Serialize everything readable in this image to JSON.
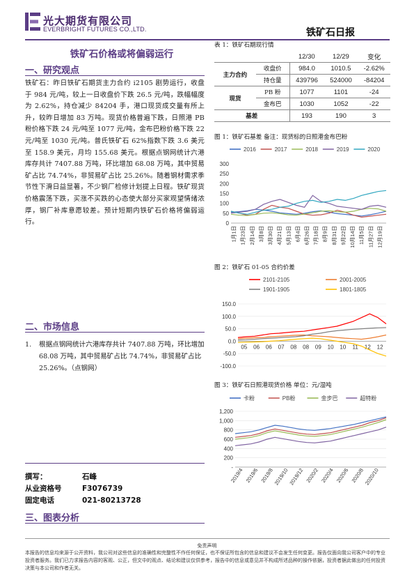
{
  "header": {
    "company_cn": "光大期货有限公司",
    "company_en": "EVERBRIGHT FUTURES CO.,LTD.",
    "report_title": "铁矿石日报"
  },
  "title": "铁矿石价格或将偏弱运行",
  "section1": {
    "heading": "一、研究观点",
    "paragraph": "铁矿石：昨日铁矿石期货主力合约 i2105 剧势运行，收盘于 984 元/吨，较上一日收盘价下跌 26.5 元/吨，跌幅幅度为 2.62%，持仓减少 84204 手，港口现货成交量有所上升，较昨日增加 83 万吨。现货价格普遍下跌，日照港 PB 粉价格下跌 24 元/吨至 1077 元/吨，金布巴粉价格下跌 22 元/吨至 1030 元/吨。普氏铁矿石 62%指数下跌 3.6 美元至 158.9 美元，月均 155.68 美元。根据点钢网统计六港库存共计 7407.88 万吨，环比增加 68.08 万吨，其中贸易矿占比 74.74%，非贸易矿占比 25.26%。随着钢材需求季节性下滑日益显著，不少钢厂检修计划提上日程。铁矿现货价格震荡下跌，买涨不买跌的心态使大部分买家观望情绪浓厚，钢厂补库意愿较差。预计短期内铁矿石价格将偏弱运行。"
  },
  "section2": {
    "heading": "二、市场信息",
    "item_no": "1.",
    "item": "根据点钢网统计六港库存共计 7407.88 万吨，环比增加 68.08 万吨，其中贸易矿占比 74.74%，非贸易矿占比 25.26%。（点钢网）"
  },
  "signature": {
    "author_label": "撰写：",
    "author": "石峰",
    "license_label": "从业资格号",
    "license": "F3076739",
    "phone_label": "固定电话",
    "phone": "021-80213728"
  },
  "section3": {
    "heading": "三、图表分析"
  },
  "table1": {
    "caption": "表 1：铁矿石期现行情",
    "headers": [
      "12/30",
      "12/29",
      "变化"
    ],
    "rows": [
      {
        "group": "主力合约",
        "item": "收盘价",
        "v1": "984.0",
        "v2": "1010.5",
        "chg": "-2.62%"
      },
      {
        "group": "",
        "item": "持仓量",
        "v1": "439796",
        "v2": "524000",
        "chg": "-84204"
      },
      {
        "group": "现货",
        "item": "PB 粉",
        "v1": "1077",
        "v2": "1101",
        "chg": "-24"
      },
      {
        "group": "",
        "item": "金布巴",
        "v1": "1030",
        "v2": "1052",
        "chg": "-22"
      },
      {
        "group": "基差",
        "item": "",
        "v1": "193",
        "v2": "190",
        "chg": "3"
      }
    ]
  },
  "chart_data": [
    {
      "caption": "图 1：铁矿石基差   备注：现货标的日照港金布巴粉",
      "type": "line",
      "series": [
        {
          "name": "2016",
          "color": "#4472c4",
          "values": [
            55,
            58,
            62,
            70,
            66,
            60,
            52,
            48,
            45,
            50,
            58,
            62,
            55,
            48,
            44,
            40,
            36,
            42,
            50,
            60
          ]
        },
        {
          "name": "2017",
          "color": "#c0504d",
          "values": [
            60,
            50,
            40,
            45,
            70,
            90,
            80,
            75,
            60,
            45,
            40,
            42,
            50,
            65,
            55,
            40,
            30,
            35,
            40,
            45
          ]
        },
        {
          "name": "2018",
          "color": "#9bbb59",
          "values": [
            45,
            40,
            38,
            44,
            50,
            52,
            48,
            42,
            40,
            46,
            52,
            60,
            62,
            58,
            55,
            60,
            70,
            75,
            72,
            60
          ]
        },
        {
          "name": "2019",
          "color": "#8064a2",
          "values": [
            50,
            55,
            60,
            70,
            95,
            110,
            120,
            105,
            90,
            80,
            140,
            110,
            100,
            85,
            80,
            75,
            70,
            85,
            90,
            80
          ]
        },
        {
          "name": "2020",
          "color": "#31a7c0",
          "values": [
            60,
            50,
            45,
            55,
            65,
            70,
            80,
            85,
            100,
            110,
            115,
            105,
            110,
            120,
            115,
            125,
            140,
            150,
            160,
            165
          ]
        }
      ],
      "x_ticks": [
        "1月1日",
        "1月23日",
        "2月14日",
        "3月8日",
        "3月30日",
        "4月21日",
        "5月13日",
        "6月4日",
        "6月26日",
        "7月18日",
        "8月9日",
        "8月31日",
        "9月22日",
        "10月14日",
        "11月5日",
        "11月27日",
        "12月19日"
      ],
      "y_ticks": [
        "0",
        "50",
        "100",
        "150",
        "200",
        "250",
        "300"
      ],
      "ylim": [
        0,
        300
      ]
    },
    {
      "caption": "图 2：铁矿石 01-05 合约价差",
      "type": "line",
      "series": [
        {
          "name": "2101-2105",
          "color": "#ff0000",
          "values": [
            15,
            18,
            20,
            25,
            30,
            32,
            35,
            38,
            40,
            45,
            50,
            55,
            60,
            70,
            80,
            95,
            110,
            95,
            70
          ]
        },
        {
          "name": "2001-2005",
          "color": "#ed7d31",
          "values": [
            10,
            12,
            14,
            15,
            18,
            20,
            22,
            24,
            25,
            22,
            20,
            18,
            15,
            12,
            10,
            8,
            12,
            18,
            25
          ]
        },
        {
          "name": "1901-1905",
          "color": "#808080",
          "values": [
            5,
            6,
            8,
            10,
            12,
            14,
            16,
            18,
            22,
            28,
            32,
            38,
            42,
            45,
            48,
            50,
            52,
            54,
            55
          ]
        },
        {
          "name": "1801-1805",
          "color": "#ffc000",
          "values": [
            -5,
            -4,
            -3,
            -2,
            0,
            2,
            5,
            8,
            10,
            12,
            10,
            5,
            0,
            -5,
            -10,
            -20,
            -35,
            -50,
            -60
          ]
        }
      ],
      "x_ticks": [
        "05",
        "06",
        "06",
        "07",
        "08",
        "08",
        "09",
        "10",
        "10",
        "11",
        "12",
        "12"
      ],
      "y_ticks": [
        "-100.0",
        "-50.0",
        "0.0",
        "50.0",
        "100.0",
        "150.0"
      ],
      "ylim": [
        -100,
        150
      ]
    },
    {
      "caption": "图 3：铁矿石日照港现货价格  单位：元/湿吨",
      "type": "line",
      "series": [
        {
          "name": "卡粉",
          "color": "#4472c4",
          "values": [
            720,
            740,
            760,
            800,
            850,
            900,
            880,
            850,
            820,
            800,
            790,
            810,
            830,
            860,
            890,
            920,
            960,
            1000,
            1040,
            1080
          ]
        },
        {
          "name": "PB粉",
          "color": "#c0504d",
          "values": [
            640,
            660,
            680,
            720,
            780,
            820,
            790,
            760,
            730,
            710,
            700,
            720,
            740,
            780,
            820,
            860,
            900,
            960,
            1000,
            1060
          ]
        },
        {
          "name": "金步巴",
          "color": "#9bbb59",
          "values": [
            600,
            620,
            640,
            680,
            740,
            780,
            750,
            720,
            690,
            670,
            660,
            680,
            700,
            740,
            780,
            820,
            860,
            910,
            960,
            1020
          ]
        },
        {
          "name": "超特粉",
          "color": "#8064a2",
          "values": [
            460,
            480,
            500,
            540,
            600,
            640,
            610,
            580,
            550,
            530,
            520,
            540,
            560,
            600,
            640,
            680,
            720,
            760,
            800,
            860
          ]
        }
      ],
      "x_ticks": [
        "2019/4",
        "2019/6",
        "2019/8",
        "2019/10",
        "2019/12",
        "2020/2",
        "2020/4",
        "2020/6",
        "2020/8",
        "2020/10"
      ],
      "y_ticks": [
        "-",
        "200",
        "400",
        "600",
        "800",
        "1,000",
        "1,200"
      ],
      "ylim": [
        0,
        1200
      ]
    }
  ],
  "footer": {
    "title": "免责声明",
    "text": "本报告的信息均来源于公开资料，我公司对这些信息的准确性和完整性不作任何保证，也不保证所包含的信息和建议不会发生任何变更。报告仅面向我公司客户中的专业投资者服务。我们已力求报告内容的客观、公正，但文中的观点、结论和建议仅供参考，报告中的信息或意见并不构成所述品种的操作依据，投资者据此做出的任何投资决策与本公司和作者无关。"
  },
  "colors": {
    "brand_purple": "#5c3e86"
  }
}
